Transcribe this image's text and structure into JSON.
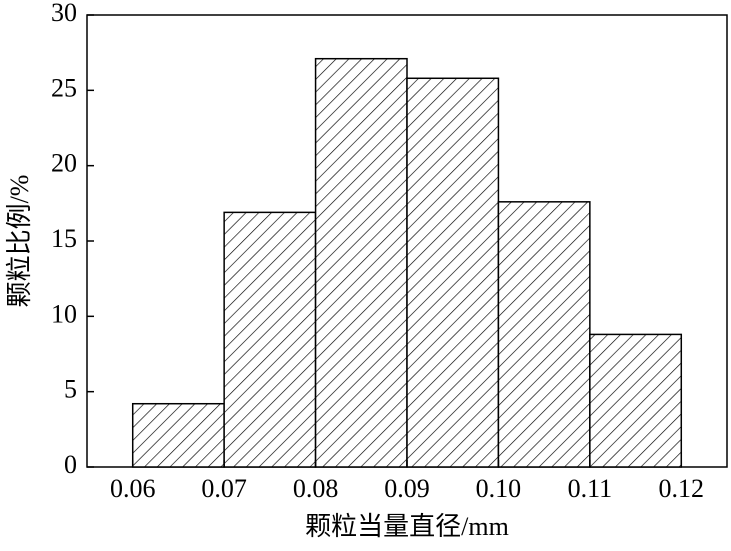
{
  "chart_data": {
    "type": "histogram",
    "x_label": "颗粒当量直径/mm",
    "y_label": "颗粒比例/%",
    "bins": [
      0.06,
      0.07,
      0.08,
      0.09,
      0.1,
      0.11,
      0.12
    ],
    "values": [
      4.2,
      16.9,
      27.1,
      25.8,
      17.6,
      8.8
    ],
    "color": "#000000",
    "xlim": [
      0.055,
      0.125
    ],
    "xticks": [
      0.06,
      0.07,
      0.08,
      0.09,
      {
        "value": 0.1,
        "label": "0.10"
      },
      0.11,
      0.12
    ],
    "ylim": [
      0,
      30
    ],
    "yticks": [
      0,
      5,
      10,
      15,
      20,
      25,
      30
    ]
  }
}
